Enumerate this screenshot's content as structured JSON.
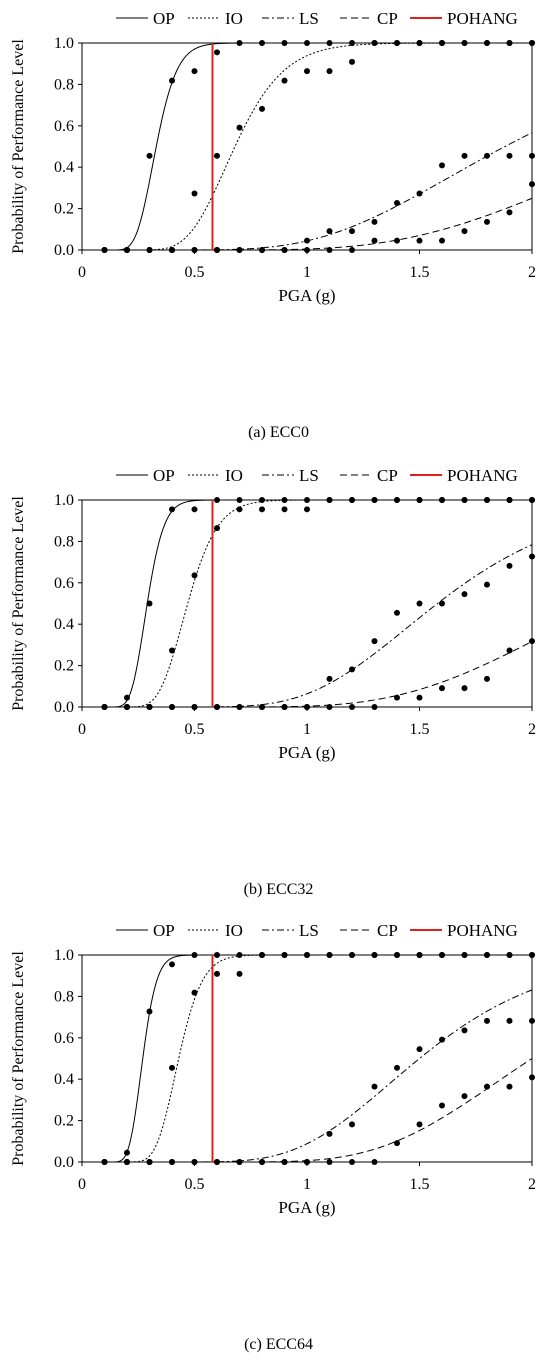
{
  "chart_data": [
    {
      "type": "line",
      "caption": "(a) ECC0",
      "xlabel": "PGA (g)",
      "ylabel": "Probability of Performance Level",
      "xlim": [
        0,
        2
      ],
      "ylim": [
        0,
        1
      ],
      "xticks": [
        "0",
        "0.5",
        "1",
        "1.5",
        "2"
      ],
      "yticks": [
        "0.0",
        "0.2",
        "0.4",
        "0.6",
        "0.8",
        "1.0"
      ],
      "legend_position": "top",
      "reference_line": {
        "name": "POHANG",
        "x": 0.58,
        "color": "#e0201c"
      },
      "series": [
        {
          "name": "OP",
          "style": "solid",
          "median": 0.33,
          "beta": 0.22,
          "points": {
            "x": [
              0.1,
              0.2,
              0.3,
              0.4,
              0.5,
              0.6,
              0.7,
              0.8,
              0.9,
              1.0,
              1.1,
              1.2,
              1.3,
              1.4,
              1.5,
              1.6,
              1.7,
              1.8,
              1.9,
              2.0
            ],
            "y": [
              0,
              0,
              0.455,
              0.818,
              0.864,
              0.955,
              1,
              1,
              1,
              1,
              1,
              1,
              1,
              1,
              1,
              1,
              1,
              1,
              1,
              1
            ]
          }
        },
        {
          "name": "IO",
          "style": "dotted",
          "median": 0.68,
          "beta": 0.25,
          "points": {
            "x": [
              0.1,
              0.2,
              0.3,
              0.4,
              0.5,
              0.6,
              0.7,
              0.8,
              0.9,
              1.0,
              1.1,
              1.2,
              1.3,
              1.4,
              1.5,
              1.6,
              1.7,
              1.8,
              1.9,
              2.0
            ],
            "y": [
              0,
              0,
              0,
              0,
              0.273,
              0.455,
              0.591,
              0.682,
              0.818,
              0.864,
              0.864,
              0.909,
              1,
              1,
              1,
              1,
              1,
              1,
              1,
              1
            ]
          }
        },
        {
          "name": "LS",
          "style": "dashdot",
          "median": 1.88,
          "beta": 0.37,
          "points": {
            "x": [
              0.1,
              0.2,
              0.3,
              0.4,
              0.5,
              0.6,
              0.7,
              0.8,
              0.9,
              1.0,
              1.1,
              1.2,
              1.3,
              1.4,
              1.5,
              1.6,
              1.7,
              1.8,
              1.9,
              2.0
            ],
            "y": [
              0,
              0,
              0,
              0,
              0,
              0,
              0,
              0,
              0,
              0.045,
              0.091,
              0.091,
              0.136,
              0.227,
              0.273,
              0.409,
              0.455,
              0.455,
              0.455,
              0.455
            ]
          }
        },
        {
          "name": "CP",
          "style": "dashed",
          "median": 2.55,
          "beta": 0.36,
          "points": {
            "x": [
              0.1,
              0.2,
              0.3,
              0.4,
              0.5,
              0.6,
              0.7,
              0.8,
              0.9,
              1.0,
              1.1,
              1.2,
              1.3,
              1.4,
              1.5,
              1.6,
              1.7,
              1.8,
              1.9,
              2.0
            ],
            "y": [
              0,
              0,
              0,
              0,
              0,
              0,
              0,
              0,
              0,
              0,
              0,
              0,
              0.045,
              0.045,
              0.045,
              0.045,
              0.091,
              0.136,
              0.182,
              0.318
            ]
          }
        }
      ]
    },
    {
      "type": "line",
      "caption": "(b) ECC32",
      "xlabel": "PGA (g)",
      "ylabel": "Probability of Performance Level",
      "xlim": [
        0,
        2
      ],
      "ylim": [
        0,
        1
      ],
      "xticks": [
        "0",
        "0.5",
        "1",
        "1.5",
        "2"
      ],
      "yticks": [
        "0.0",
        "0.2",
        "0.4",
        "0.6",
        "0.8",
        "1.0"
      ],
      "legend_position": "top",
      "reference_line": {
        "name": "POHANG",
        "x": 0.58,
        "color": "#e0201c"
      },
      "series": [
        {
          "name": "OP",
          "style": "solid",
          "median": 0.29,
          "beta": 0.2,
          "points": {
            "x": [
              0.1,
              0.2,
              0.3,
              0.4,
              0.5,
              0.6,
              0.7,
              0.8,
              0.9,
              1.0,
              1.1,
              1.2,
              1.3,
              1.4,
              1.5,
              1.6,
              1.7,
              1.8,
              1.9,
              2.0
            ],
            "y": [
              0,
              0.045,
              0.5,
              0.955,
              0.955,
              1,
              1,
              1,
              1,
              1,
              1,
              1,
              1,
              1,
              1,
              1,
              1,
              1,
              1,
              1
            ]
          }
        },
        {
          "name": "IO",
          "style": "dotted",
          "median": 0.47,
          "beta": 0.22,
          "points": {
            "x": [
              0.1,
              0.2,
              0.3,
              0.4,
              0.5,
              0.6,
              0.7,
              0.8,
              0.9,
              1.0,
              1.1,
              1.2,
              1.3,
              1.4,
              1.5,
              1.6,
              1.7,
              1.8,
              1.9,
              2.0
            ],
            "y": [
              0,
              0,
              0,
              0.273,
              0.636,
              0.864,
              0.955,
              0.955,
              0.955,
              0.955,
              1,
              1,
              1,
              1,
              1,
              1,
              1,
              1,
              1,
              1
            ]
          }
        },
        {
          "name": "LS",
          "style": "dashdot",
          "median": 1.58,
          "beta": 0.3,
          "points": {
            "x": [
              0.1,
              0.2,
              0.3,
              0.4,
              0.5,
              0.6,
              0.7,
              0.8,
              0.9,
              1.0,
              1.1,
              1.2,
              1.3,
              1.4,
              1.5,
              1.6,
              1.7,
              1.8,
              1.9,
              2.0
            ],
            "y": [
              0,
              0,
              0,
              0,
              0,
              0,
              0,
              0,
              0,
              0,
              0.136,
              0.182,
              0.318,
              0.455,
              0.5,
              0.5,
              0.545,
              0.591,
              0.682,
              0.727
            ]
          }
        },
        {
          "name": "CP",
          "style": "dashed",
          "median": 2.33,
          "beta": 0.32,
          "points": {
            "x": [
              0.1,
              0.2,
              0.3,
              0.4,
              0.5,
              0.6,
              0.7,
              0.8,
              0.9,
              1.0,
              1.1,
              1.2,
              1.3,
              1.4,
              1.5,
              1.6,
              1.7,
              1.8,
              1.9,
              2.0
            ],
            "y": [
              0,
              0,
              0,
              0,
              0,
              0,
              0,
              0,
              0,
              0,
              0,
              0,
              0,
              0.045,
              0.045,
              0.091,
              0.091,
              0.136,
              0.273,
              0.318
            ]
          }
        }
      ]
    },
    {
      "type": "line",
      "caption": "(c) ECC64",
      "xlabel": "PGA (g)",
      "ylabel": "Probability of Performance Level",
      "xlim": [
        0,
        2
      ],
      "ylim": [
        0,
        1
      ],
      "xticks": [
        "0",
        "0.5",
        "1",
        "1.5",
        "2"
      ],
      "yticks": [
        "0.0",
        "0.2",
        "0.4",
        "0.6",
        "0.8",
        "1.0"
      ],
      "legend_position": "top",
      "reference_line": {
        "name": "POHANG",
        "x": 0.58,
        "color": "#e0201c"
      },
      "series": [
        {
          "name": "OP",
          "style": "solid",
          "median": 0.27,
          "beta": 0.18,
          "points": {
            "x": [
              0.1,
              0.2,
              0.3,
              0.4,
              0.5,
              0.6,
              0.7,
              0.8,
              0.9,
              1.0,
              1.1,
              1.2,
              1.3,
              1.4,
              1.5,
              1.6,
              1.7,
              1.8,
              1.9,
              2.0
            ],
            "y": [
              0,
              0.045,
              0.727,
              0.955,
              1,
              1,
              1,
              1,
              1,
              1,
              1,
              1,
              1,
              1,
              1,
              1,
              1,
              1,
              1,
              1
            ]
          }
        },
        {
          "name": "IO",
          "style": "dotted",
          "median": 0.43,
          "beta": 0.19,
          "points": {
            "x": [
              0.1,
              0.2,
              0.3,
              0.4,
              0.5,
              0.6,
              0.7,
              0.8,
              0.9,
              1.0,
              1.1,
              1.2,
              1.3,
              1.4,
              1.5,
              1.6,
              1.7,
              1.8,
              1.9,
              2.0
            ],
            "y": [
              0,
              0,
              0,
              0.455,
              0.818,
              0.909,
              0.909,
              1,
              1,
              1,
              1,
              1,
              1,
              1,
              1,
              1,
              1,
              1,
              1,
              1
            ]
          }
        },
        {
          "name": "LS",
          "style": "dashdot",
          "median": 1.5,
          "beta": 0.3,
          "points": {
            "x": [
              0.1,
              0.2,
              0.3,
              0.4,
              0.5,
              0.6,
              0.7,
              0.8,
              0.9,
              1.0,
              1.1,
              1.2,
              1.3,
              1.4,
              1.5,
              1.6,
              1.7,
              1.8,
              1.9,
              2.0
            ],
            "y": [
              0,
              0,
              0,
              0,
              0,
              0,
              0,
              0,
              0,
              0,
              0.136,
              0.182,
              0.364,
              0.455,
              0.545,
              0.591,
              0.636,
              0.682,
              0.682,
              0.682
            ]
          }
        },
        {
          "name": "CP",
          "style": "dashed",
          "median": 2.0,
          "beta": 0.28,
          "points": {
            "x": [
              0.1,
              0.2,
              0.3,
              0.4,
              0.5,
              0.6,
              0.7,
              0.8,
              0.9,
              1.0,
              1.1,
              1.2,
              1.3,
              1.4,
              1.5,
              1.6,
              1.7,
              1.8,
              1.9,
              2.0
            ],
            "y": [
              0,
              0,
              0,
              0,
              0,
              0,
              0,
              0,
              0,
              0,
              0,
              0,
              0,
              0.091,
              0.182,
              0.273,
              0.318,
              0.364,
              0.364,
              0.409
            ]
          }
        }
      ]
    }
  ]
}
